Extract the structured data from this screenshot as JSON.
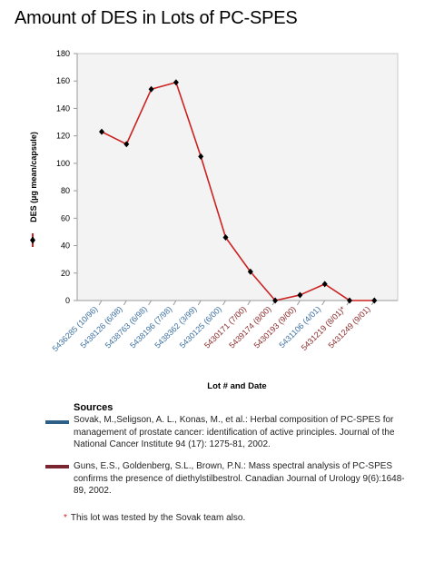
{
  "chart_data": {
    "type": "line",
    "title": "Amount of DES in Lots of PC-SPES",
    "xlabel": "Lot # and Date",
    "ylabel": "DES (µg mean/capsule)",
    "ylim": [
      0,
      180
    ],
    "yticks": [
      0,
      20,
      40,
      60,
      80,
      100,
      120,
      140,
      160,
      180
    ],
    "grid": false,
    "categories": [
      "5436285 (10/96)",
      "5438126 (6/98)",
      "5438763 (6/98)",
      "5438196 (7/98)",
      "5438362 (3/99)",
      "5430125 (6/00)",
      "5430171 (7/00)",
      "5439174 (8/00)",
      "5430193 (9/00)",
      "5431106 (4/01)",
      "5431219 (8/01)*",
      "5431249 (9/01)"
    ],
    "label_colors": [
      "#3a6fa0",
      "#3a6fa0",
      "#3a6fa0",
      "#3a6fa0",
      "#3a6fa0",
      "#3a6fa0",
      "#8b2a2a",
      "#8b2a2a",
      "#8b2a2a",
      "#3a6fa0",
      "#8b2a2a",
      "#8b2a2a"
    ],
    "series": [
      {
        "values": [
          123,
          114,
          154,
          159,
          105,
          46,
          21,
          0,
          4,
          12,
          0,
          0
        ],
        "color": "#cc2222",
        "marker": "diamond"
      }
    ]
  },
  "sources": {
    "heading": "Sources",
    "items": [
      {
        "color": "#2e5f86",
        "text": "Sovak, M.,Seligson, A. L., Konas, M., et al.: Herbal composition of PC-SPES for management of prostate cancer: identification of active principles. Journal of the National Cancer Institute 94 (17): 1275-81, 2002."
      },
      {
        "color": "#7a2630",
        "text": "Guns, E.S., Goldenberg, S.L., Brown, P.N.: Mass spectral analysis of PC-SPES confirms the presence of diethylstilbestrol. Canadian Journal of Urology 9(6):1648-89, 2002."
      }
    ]
  },
  "footnote": {
    "star": "*",
    "text": "This lot was tested by the Sovak team also."
  }
}
